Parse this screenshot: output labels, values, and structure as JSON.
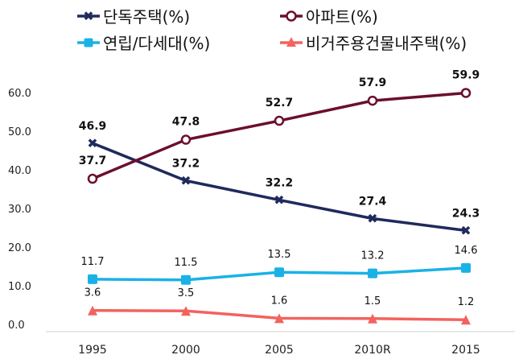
{
  "chart_data": {
    "type": "line",
    "categories": [
      "1995",
      "2000",
      "2005",
      "2010R",
      "2015"
    ],
    "ylim": [
      0,
      60
    ],
    "yticks": [
      "0.0",
      "10.0",
      "20.0",
      "30.0",
      "40.0",
      "50.0",
      "60.0"
    ],
    "grid": false,
    "legend_position": "top",
    "series": [
      {
        "name": "단독주택(%)",
        "color": "#1f2a5c",
        "marker": "x",
        "values": [
          46.9,
          37.2,
          32.2,
          27.4,
          24.3
        ],
        "labels": [
          "46.9",
          "37.2",
          "32.2",
          "27.4",
          "24.3"
        ],
        "label_bold": true
      },
      {
        "name": "아파트(%)",
        "color": "#6b0f2f",
        "marker": "circle",
        "values": [
          37.7,
          47.8,
          52.7,
          57.9,
          59.9
        ],
        "labels": [
          "37.7",
          "47.8",
          "52.7",
          "57.9",
          "59.9"
        ],
        "label_bold": true
      },
      {
        "name": "연립/다세대(%)",
        "color": "#1ab2e6",
        "marker": "square",
        "values": [
          11.7,
          11.5,
          13.5,
          13.2,
          14.6
        ],
        "labels": [
          "11.7",
          "11.5",
          "13.5",
          "13.2",
          "14.6"
        ],
        "label_bold": false
      },
      {
        "name": "비거주용건물내주택(%)",
        "color": "#f2635e",
        "marker": "triangle",
        "values": [
          3.6,
          3.5,
          1.6,
          1.5,
          1.2
        ],
        "labels": [
          "3.6",
          "3.5",
          "1.6",
          "1.5",
          "1.2"
        ],
        "label_bold": false
      }
    ]
  }
}
